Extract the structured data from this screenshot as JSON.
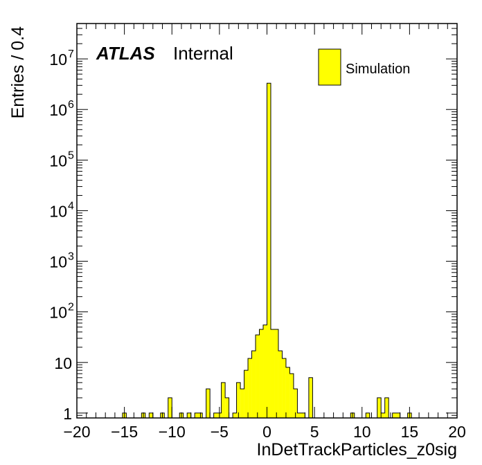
{
  "chart_data": {
    "type": "bar",
    "histogram": true,
    "xlabel": "InDetTrackParticles_z0sig",
    "ylabel": "Entries / 0.4",
    "xlim": [
      -20,
      20
    ],
    "ylim": [
      0.8,
      50000000
    ],
    "yscale": "log",
    "bin_width": 0.4,
    "x_ticks": [
      -20,
      -15,
      -10,
      -5,
      0,
      5,
      10,
      15,
      20
    ],
    "x_tick_labels": [
      "−20",
      "−15",
      "−10",
      "−5",
      "0",
      "5",
      "10",
      "15",
      "20"
    ],
    "y_tick_labels": [
      {
        "value": 1,
        "base": "1",
        "exp": ""
      },
      {
        "value": 10,
        "base": "10",
        "exp": ""
      },
      {
        "value": 100,
        "base": "10",
        "exp": "2"
      },
      {
        "value": 1000,
        "base": "10",
        "exp": "3"
      },
      {
        "value": 10000,
        "base": "10",
        "exp": "4"
      },
      {
        "value": 100000,
        "base": "10",
        "exp": "5"
      },
      {
        "value": 1000000,
        "base": "10",
        "exp": "6"
      },
      {
        "value": 10000000,
        "base": "10",
        "exp": "7"
      }
    ],
    "grid": false,
    "legend_position": "top-right",
    "fill_color": "#ffff00",
    "line_color": "#000000",
    "series": [
      {
        "name": "Simulation",
        "bins": [
          {
            "x0": -15.2,
            "x1": -14.8,
            "y": 1
          },
          {
            "x0": -13.2,
            "x1": -12.8,
            "y": 1
          },
          {
            "x0": -12.4,
            "x1": -12.0,
            "y": 1
          },
          {
            "x0": -11.2,
            "x1": -10.8,
            "y": 1
          },
          {
            "x0": -10.4,
            "x1": -10.0,
            "y": 2
          },
          {
            "x0": -9.2,
            "x1": -8.8,
            "y": 1
          },
          {
            "x0": -8.4,
            "x1": -8.0,
            "y": 1
          },
          {
            "x0": -7.6,
            "x1": -6.8,
            "y": 1
          },
          {
            "x0": -6.4,
            "x1": -6.0,
            "y": 3
          },
          {
            "x0": -5.6,
            "x1": -5.2,
            "y": 1
          },
          {
            "x0": -5.2,
            "x1": -4.8,
            "y": 1
          },
          {
            "x0": -4.8,
            "x1": -4.4,
            "y": 4
          },
          {
            "x0": -4.4,
            "x1": -4.0,
            "y": 2
          },
          {
            "x0": -3.6,
            "x1": -3.2,
            "y": 1
          },
          {
            "x0": -3.2,
            "x1": -2.8,
            "y": 4
          },
          {
            "x0": -2.8,
            "x1": -2.4,
            "y": 3
          },
          {
            "x0": -2.4,
            "x1": -2.0,
            "y": 7
          },
          {
            "x0": -2.0,
            "x1": -1.6,
            "y": 12
          },
          {
            "x0": -1.6,
            "x1": -1.2,
            "y": 17
          },
          {
            "x0": -1.2,
            "x1": -0.8,
            "y": 35
          },
          {
            "x0": -0.8,
            "x1": -0.4,
            "y": 45
          },
          {
            "x0": -0.4,
            "x1": 0.0,
            "y": 55
          },
          {
            "x0": 0.0,
            "x1": 0.4,
            "y": 3300000
          },
          {
            "x0": 0.4,
            "x1": 0.8,
            "y": 45
          },
          {
            "x0": 0.8,
            "x1": 1.2,
            "y": 45
          },
          {
            "x0": 1.2,
            "x1": 1.6,
            "y": 17
          },
          {
            "x0": 1.6,
            "x1": 2.0,
            "y": 12
          },
          {
            "x0": 2.0,
            "x1": 2.4,
            "y": 8
          },
          {
            "x0": 2.4,
            "x1": 2.8,
            "y": 6
          },
          {
            "x0": 2.8,
            "x1": 3.2,
            "y": 3
          },
          {
            "x0": 3.2,
            "x1": 3.6,
            "y": 1
          },
          {
            "x0": 3.6,
            "x1": 4.0,
            "y": 1
          },
          {
            "x0": 4.4,
            "x1": 4.8,
            "y": 5
          },
          {
            "x0": 8.8,
            "x1": 9.2,
            "y": 1
          },
          {
            "x0": 10.4,
            "x1": 10.8,
            "y": 1
          },
          {
            "x0": 11.6,
            "x1": 12.0,
            "y": 2
          },
          {
            "x0": 12.0,
            "x1": 12.4,
            "y": 1
          },
          {
            "x0": 12.4,
            "x1": 12.8,
            "y": 2
          },
          {
            "x0": 13.2,
            "x1": 14.0,
            "y": 1
          },
          {
            "x0": 14.8,
            "x1": 15.2,
            "y": 1
          }
        ]
      }
    ]
  },
  "labels": {
    "experiment": "ATLAS",
    "status": "Internal"
  },
  "legend": {
    "entry": "Simulation"
  }
}
